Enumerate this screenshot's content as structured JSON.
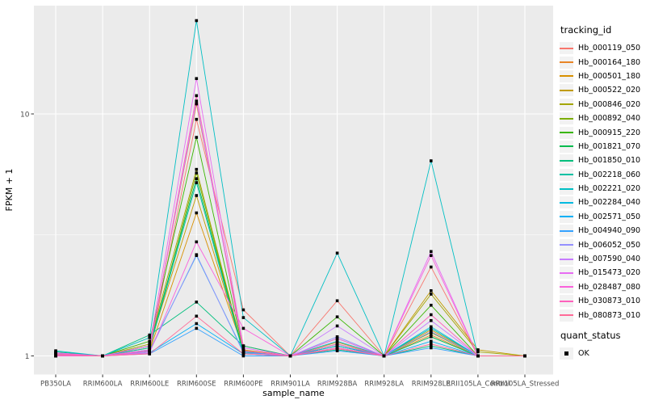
{
  "figure": {
    "background": "#FFFFFF",
    "panel_background": "#EBEBEB",
    "grid_color": "#FFFFFF",
    "axis_text_color": "#4D4D4D",
    "tick_color": "#333333",
    "point_color": "#000000"
  },
  "axes": {
    "x_title": "sample_name",
    "y_title": "FPKM + 1",
    "y_tick_labels": [
      "10",
      "1"
    ]
  },
  "legend": {
    "tracking_title": "tracking_id",
    "quant_title": "quant_status",
    "quant_ok_label": "OK"
  },
  "chart_data": {
    "type": "line",
    "y_scale": "log10",
    "xlabel": "sample_name",
    "ylabel": "FPKM + 1",
    "yticks": [
      1,
      10
    ],
    "ylim": [
      0.93,
      28
    ],
    "grid": true,
    "legend_position": "right",
    "legend_title": "tracking_id",
    "marker_legend": {
      "title": "quant_status",
      "items": [
        "OK"
      ],
      "marker": "black-square"
    },
    "categories": [
      "PB350LA",
      "RRIM600LA",
      "RRIM600LE",
      "RRIM600SE",
      "RRIM600PE",
      "RRIM901LA",
      "RRIM928BA",
      "RRIM928LA",
      "RRIM928LE",
      "RRII105LA_Control",
      "RRII105LA_Stressed"
    ],
    "series": [
      {
        "name": "Hb_000119_050",
        "color": "#F8766D",
        "values": [
          1.03,
          1.0,
          1.05,
          9.5,
          1.55,
          1.0,
          1.69,
          1.0,
          2.33,
          1.0,
          1.0
        ]
      },
      {
        "name": "Hb_000164_180",
        "color": "#E88526",
        "values": [
          1.02,
          1.0,
          1.08,
          11.0,
          1.1,
          1.0,
          1.1,
          1.0,
          1.22,
          1.0,
          1.0
        ]
      },
      {
        "name": "Hb_000501_180",
        "color": "#D89000",
        "values": [
          1.01,
          1.0,
          1.05,
          3.9,
          1.06,
          1.0,
          1.14,
          1.0,
          1.28,
          1.0,
          1.0
        ]
      },
      {
        "name": "Hb_000522_020",
        "color": "#C09B00",
        "values": [
          1.02,
          1.0,
          1.1,
          4.6,
          1.05,
          1.0,
          1.18,
          1.0,
          1.86,
          1.06,
          1.0
        ]
      },
      {
        "name": "Hb_000846_020",
        "color": "#A3A500",
        "values": [
          1.01,
          1.0,
          1.12,
          5.9,
          1.04,
          1.0,
          1.1,
          1.0,
          1.8,
          1.04,
          1.0
        ]
      },
      {
        "name": "Hb_000892_040",
        "color": "#7CAE00",
        "values": [
          1.0,
          1.0,
          1.06,
          5.7,
          1.03,
          1.0,
          1.08,
          1.0,
          1.25,
          1.0,
          1.0
        ]
      },
      {
        "name": "Hb_000915_220",
        "color": "#39B600",
        "values": [
          1.02,
          1.0,
          1.15,
          8.0,
          1.05,
          1.0,
          1.45,
          1.0,
          1.62,
          1.0,
          1.0
        ]
      },
      {
        "name": "Hb_001821_070",
        "color": "#00BB4E",
        "values": [
          1.0,
          1.0,
          1.1,
          5.4,
          1.03,
          1.0,
          1.1,
          1.0,
          1.2,
          1.0,
          1.0
        ]
      },
      {
        "name": "Hb_001850_010",
        "color": "#00BF7D",
        "values": [
          1.04,
          1.0,
          1.22,
          1.67,
          1.1,
          1.0,
          1.06,
          1.0,
          1.1,
          1.0,
          1.0
        ]
      },
      {
        "name": "Hb_002218_060",
        "color": "#00C1A3",
        "values": [
          1.0,
          1.0,
          1.08,
          5.2,
          1.02,
          1.0,
          1.12,
          1.0,
          1.3,
          1.0,
          1.0
        ]
      },
      {
        "name": "Hb_002221_020",
        "color": "#00BFC4",
        "values": [
          1.05,
          1.0,
          1.19,
          24.3,
          1.44,
          1.0,
          2.66,
          1.0,
          6.4,
          1.0,
          1.0
        ]
      },
      {
        "name": "Hb_002284_040",
        "color": "#00BAE0",
        "values": [
          1.0,
          1.0,
          1.05,
          2.6,
          1.04,
          1.0,
          1.15,
          1.0,
          1.32,
          1.0,
          1.0
        ]
      },
      {
        "name": "Hb_002571_050",
        "color": "#00B0F6",
        "values": [
          1.02,
          1.0,
          1.03,
          1.36,
          1.02,
          1.0,
          1.1,
          1.0,
          1.15,
          1.0,
          1.0
        ]
      },
      {
        "name": "Hb_004940_090",
        "color": "#35A2FF",
        "values": [
          1.0,
          1.0,
          1.02,
          1.3,
          1.0,
          1.0,
          1.05,
          1.0,
          1.08,
          1.0,
          1.0
        ]
      },
      {
        "name": "Hb_006052_050",
        "color": "#9590FF",
        "values": [
          1.01,
          1.0,
          1.04,
          2.62,
          1.03,
          1.0,
          1.2,
          1.0,
          1.26,
          1.0,
          1.0
        ]
      },
      {
        "name": "Hb_007590_040",
        "color": "#C77CFF",
        "values": [
          1.02,
          1.0,
          1.06,
          11.3,
          1.05,
          1.0,
          1.33,
          1.0,
          1.4,
          1.0,
          1.0
        ]
      },
      {
        "name": "Hb_015473_020",
        "color": "#E76BF3",
        "values": [
          1.03,
          1.0,
          1.1,
          14.0,
          1.08,
          1.0,
          1.18,
          1.0,
          2.7,
          1.0,
          1.0
        ]
      },
      {
        "name": "Hb_028487_080",
        "color": "#FA62DB",
        "values": [
          1.0,
          1.0,
          1.03,
          2.96,
          1.3,
          1.0,
          1.08,
          1.0,
          2.6,
          1.0,
          1.0
        ]
      },
      {
        "name": "Hb_030873_010",
        "color": "#FF62BC",
        "values": [
          1.02,
          1.0,
          1.05,
          11.9,
          1.05,
          1.0,
          1.12,
          1.0,
          1.48,
          1.0,
          1.0
        ]
      },
      {
        "name": "Hb_080873_010",
        "color": "#FF6A98",
        "values": [
          1.01,
          1.0,
          1.02,
          1.46,
          1.02,
          1.0,
          1.07,
          1.0,
          1.12,
          1.0,
          1.0
        ]
      }
    ]
  }
}
